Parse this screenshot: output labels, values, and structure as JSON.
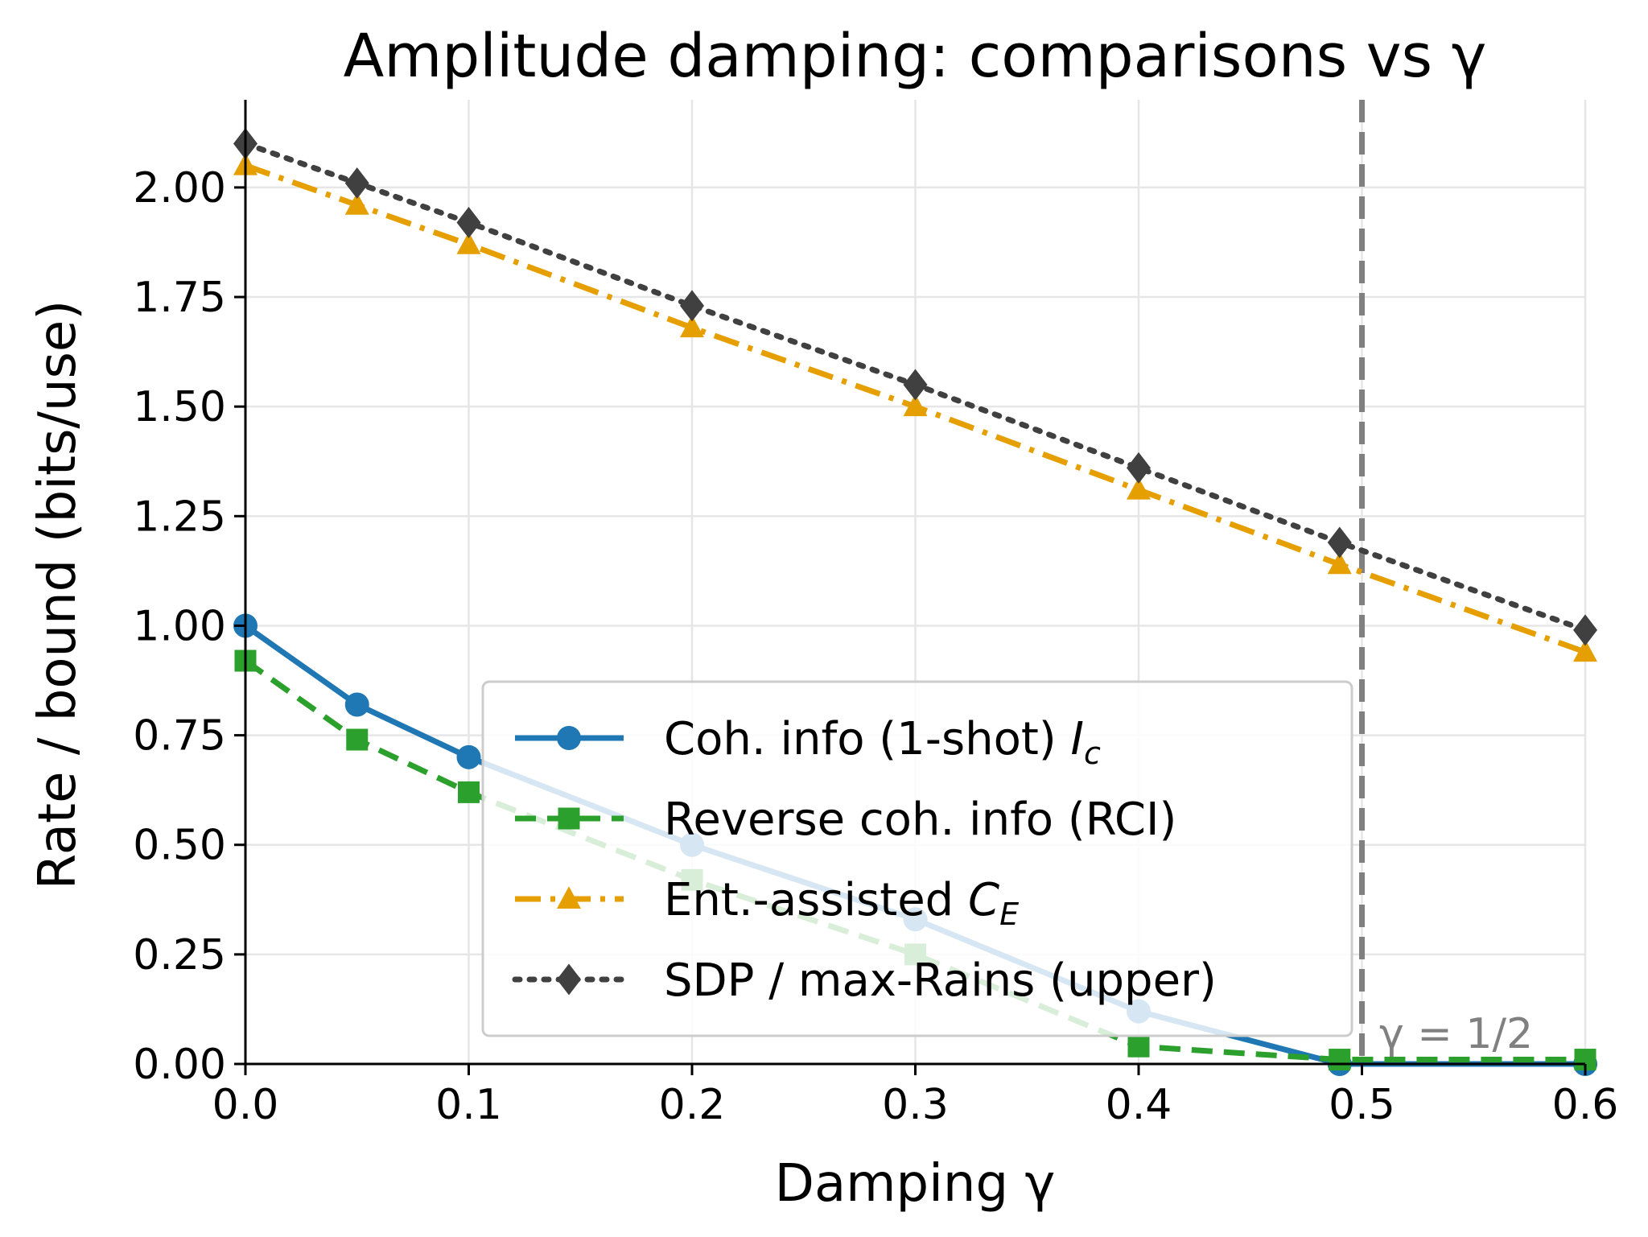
{
  "chart_data": {
    "type": "line",
    "title": "Amplitude damping: comparisons vs γ",
    "xlabel": "Damping γ",
    "ylabel": "Rate / bound (bits/use)",
    "xlim": [
      0,
      0.6
    ],
    "ylim": [
      0,
      2.2
    ],
    "xticks": [
      0.0,
      0.1,
      0.2,
      0.3,
      0.4,
      0.5,
      0.6
    ],
    "xtick_labels": [
      "0.0",
      "0.1",
      "0.2",
      "0.3",
      "0.4",
      "0.5",
      "0.6"
    ],
    "yticks": [
      0.0,
      0.25,
      0.5,
      0.75,
      1.0,
      1.25,
      1.5,
      1.75,
      2.0
    ],
    "ytick_labels": [
      "0.00",
      "0.25",
      "0.50",
      "0.75",
      "1.00",
      "1.25",
      "1.50",
      "1.75",
      "2.00"
    ],
    "grid": true,
    "legend_position": "lower-center",
    "vline": {
      "x": 0.5,
      "label": "γ = 1/2",
      "color": "#808080"
    },
    "x": [
      0.0,
      0.05,
      0.1,
      0.2,
      0.3,
      0.4,
      0.49,
      0.6
    ],
    "series": [
      {
        "name": "Coh. info (1-shot)",
        "math": "I",
        "sub": "c",
        "color": "#1f77b4",
        "style": "solid",
        "marker": "circle",
        "values": [
          1.0,
          0.82,
          0.7,
          0.5,
          0.33,
          0.12,
          0.0,
          0.0
        ]
      },
      {
        "name": "Reverse coh. info (RCI)",
        "math": "",
        "sub": "",
        "color": "#2ca02c",
        "style": "dashed",
        "marker": "square",
        "values": [
          0.92,
          0.74,
          0.62,
          0.42,
          0.25,
          0.04,
          0.01,
          0.01
        ]
      },
      {
        "name": "Ent.-assisted",
        "math": "C",
        "sub": "E",
        "color": "#e69f00",
        "style": "dashdot",
        "marker": "triangle",
        "values": [
          2.05,
          1.96,
          1.87,
          1.68,
          1.5,
          1.31,
          1.14,
          0.94
        ]
      },
      {
        "name": "SDP / max-Rains (upper)",
        "math": "",
        "sub": "",
        "color": "#404040",
        "style": "dotted",
        "marker": "diamond",
        "values": [
          2.1,
          2.01,
          1.92,
          1.73,
          1.55,
          1.36,
          1.19,
          0.99
        ]
      }
    ]
  }
}
